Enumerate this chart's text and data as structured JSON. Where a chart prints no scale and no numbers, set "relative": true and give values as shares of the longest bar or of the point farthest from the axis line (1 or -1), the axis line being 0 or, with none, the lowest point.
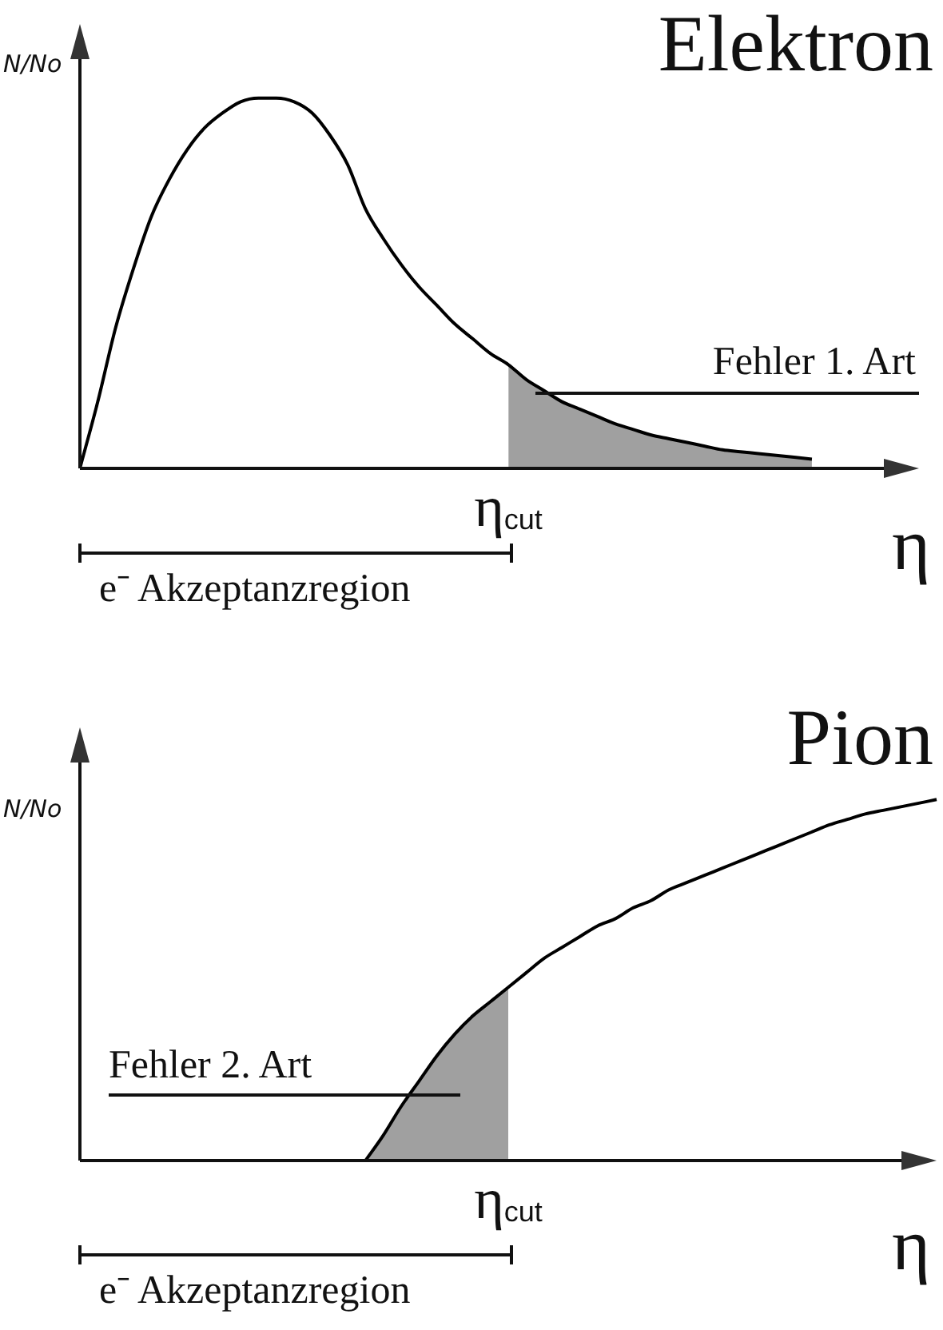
{
  "chart_data": [
    {
      "type": "line",
      "title": "Elektron",
      "xlabel": "η",
      "ylabel": "N/No",
      "relative": true,
      "categories": [
        null,
        null,
        null,
        null,
        null,
        null,
        null,
        null,
        null,
        null,
        null,
        null,
        null,
        null,
        null,
        null,
        null,
        null,
        null,
        null,
        null,
        null,
        null,
        null,
        null,
        null,
        null,
        null,
        null,
        null,
        null,
        null,
        null,
        null,
        null,
        null,
        null,
        null,
        null,
        null,
        null,
        null,
        null,
        null,
        null,
        null,
        null,
        null
      ],
      "series": [
        {
          "type": "area",
          "color": "#a0a0a0",
          "values": [
            null,
            null,
            null,
            null,
            null,
            null,
            null,
            null,
            null,
            null,
            null,
            null,
            null,
            null,
            null,
            null,
            null,
            null,
            null,
            null,
            null,
            null,
            null,
            null,
            0.28,
            0.24,
            0.21,
            0.18,
            0.16,
            0.14,
            0.12,
            0.105,
            0.09,
            0.08,
            0.07,
            0.06,
            0.05,
            0.045,
            0.04,
            0.035,
            0.03,
            0.025,
            null,
            null,
            null,
            null,
            null,
            null
          ]
        },
        {
          "color": "#000000",
          "values": [
            0,
            0.18,
            0.38,
            0.54,
            0.68,
            0.78,
            0.86,
            0.92,
            0.96,
            0.99,
            1,
            1,
            0.99,
            0.96,
            0.9,
            0.82,
            0.7,
            0.62,
            0.55,
            0.49,
            0.44,
            0.39,
            0.35,
            0.31,
            0.28,
            0.24,
            0.21,
            0.18,
            0.16,
            0.14,
            0.12,
            0.105,
            0.09,
            0.08,
            0.07,
            0.06,
            0.05,
            0.045,
            0.04,
            0.035,
            0.03,
            0.025,
            null,
            null,
            null,
            null,
            null,
            null
          ]
        }
      ],
      "annotations": [
        "Fehler 1. Art",
        "η$_{cut}$",
        "e⁻ Akzeptanzregion"
      ]
    },
    {
      "type": "line",
      "title": "Pion",
      "xlabel": "η",
      "ylabel": "N/No",
      "relative": true,
      "categories": [
        null,
        null,
        null,
        null,
        null,
        null,
        null,
        null,
        null,
        null,
        null,
        null,
        null,
        null,
        null,
        null,
        null,
        null,
        null,
        null,
        null,
        null,
        null,
        null,
        null,
        null,
        null,
        null,
        null,
        null,
        null,
        null,
        null,
        null,
        null,
        null,
        null,
        null,
        null,
        null,
        null,
        null,
        null,
        null,
        null,
        null,
        null,
        null,
        null
      ],
      "series": [
        {
          "type": "area",
          "color": "#a0a0a0",
          "values": [
            null,
            null,
            null,
            null,
            null,
            null,
            null,
            null,
            null,
            null,
            null,
            null,
            null,
            null,
            null,
            null,
            0,
            0.07,
            0.15,
            0.22,
            0.29,
            0.35,
            0.4,
            0.44,
            0.48,
            null,
            null,
            null,
            null,
            null,
            null,
            null,
            null,
            null,
            null,
            null,
            null,
            null,
            null,
            null,
            null,
            null,
            null,
            null,
            null,
            null,
            null,
            null,
            null
          ]
        },
        {
          "color": "#000000",
          "values": [
            null,
            null,
            null,
            null,
            null,
            null,
            null,
            null,
            null,
            null,
            null,
            null,
            null,
            null,
            null,
            null,
            0,
            0.07,
            0.15,
            0.22,
            0.29,
            0.35,
            0.4,
            0.44,
            0.48,
            0.52,
            0.56,
            0.59,
            0.62,
            0.65,
            0.67,
            0.7,
            0.72,
            0.75,
            0.77,
            0.79,
            0.81,
            0.83,
            0.85,
            0.87,
            0.89,
            0.91,
            0.93,
            0.945,
            0.96,
            0.97,
            0.98,
            0.99,
            1
          ]
        }
      ],
      "annotations": [
        "Fehler 2. Art",
        "η$_{cut}$",
        "e⁻ Akzeptanzregion"
      ]
    }
  ]
}
